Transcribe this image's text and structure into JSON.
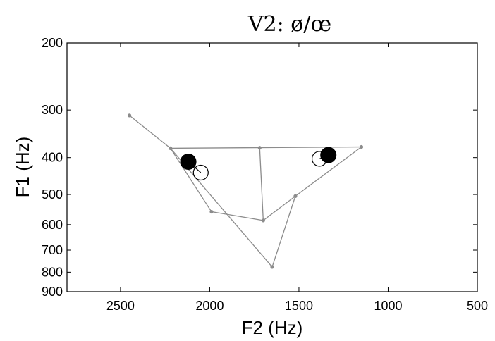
{
  "chart_data": {
    "type": "scatter",
    "title": "V2: ø/œ",
    "xlabel": "F2 (Hz)",
    "ylabel": "F1 (Hz)",
    "xlim": [
      2800,
      500
    ],
    "ylim": [
      200,
      900
    ],
    "x_reversed": true,
    "y_reversed": true,
    "y_scale": "log",
    "grid": false,
    "xticks": [
      2500,
      2000,
      1500,
      1000,
      500
    ],
    "yticks": [
      200,
      300,
      400,
      500,
      600,
      700,
      800,
      900
    ],
    "vowel_space": {
      "points": [
        {
          "f2": 2450,
          "f1": 310
        },
        {
          "f2": 2220,
          "f1": 378
        },
        {
          "f2": 1720,
          "f1": 377
        },
        {
          "f2": 1150,
          "f1": 375
        },
        {
          "f2": 1520,
          "f1": 505
        },
        {
          "f2": 1700,
          "f1": 585
        },
        {
          "f2": 1990,
          "f1": 555
        },
        {
          "f2": 1650,
          "f1": 775
        }
      ],
      "segments": [
        [
          {
            "f2": 2450,
            "f1": 310
          },
          {
            "f2": 2220,
            "f1": 378
          }
        ],
        [
          {
            "f2": 2220,
            "f1": 378
          },
          {
            "f2": 1150,
            "f1": 375
          }
        ],
        [
          {
            "f2": 2220,
            "f1": 378
          },
          {
            "f2": 1990,
            "f1": 555
          }
        ],
        [
          {
            "f2": 1990,
            "f1": 555
          },
          {
            "f2": 1700,
            "f1": 585
          }
        ],
        [
          {
            "f2": 1720,
            "f1": 377
          },
          {
            "f2": 1700,
            "f1": 585
          }
        ],
        [
          {
            "f2": 1700,
            "f1": 585
          },
          {
            "f2": 1520,
            "f1": 505
          }
        ],
        [
          {
            "f2": 1520,
            "f1": 505
          },
          {
            "f2": 1150,
            "f1": 375
          }
        ],
        [
          {
            "f2": 2220,
            "f1": 378
          },
          {
            "f2": 1650,
            "f1": 775
          }
        ],
        [
          {
            "f2": 1650,
            "f1": 775
          },
          {
            "f2": 1520,
            "f1": 505
          }
        ]
      ],
      "color": "#8c8c8c"
    },
    "series": [
      {
        "marker": "filled",
        "points": [
          {
            "f2": 2120,
            "f1": 410
          },
          {
            "f2": 1335,
            "f1": 394
          }
        ]
      },
      {
        "marker": "open",
        "points": [
          {
            "f2": 2050,
            "f1": 438
          },
          {
            "f2": 1385,
            "f1": 403
          }
        ]
      }
    ],
    "links": [
      [
        {
          "f2": 2120,
          "f1": 410
        },
        {
          "f2": 2050,
          "f1": 438
        }
      ],
      [
        {
          "f2": 1335,
          "f1": 394
        },
        {
          "f2": 1385,
          "f1": 403
        }
      ]
    ]
  }
}
